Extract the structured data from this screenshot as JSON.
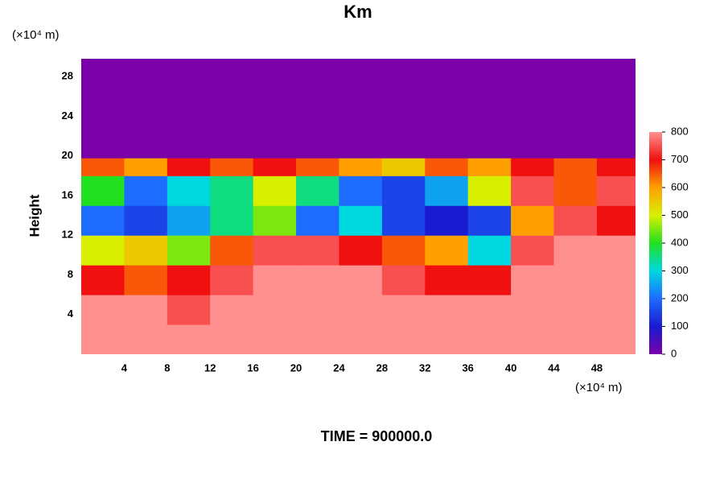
{
  "chart_data": {
    "type": "heatmap",
    "title": "Km",
    "ylabel": "Height",
    "x_unit": "(×10⁴ m)",
    "y_unit": "(×10⁴ m)",
    "annotation": "TIME = 900000.0",
    "x_edges": [
      0,
      4,
      8,
      12,
      16,
      20,
      24,
      28,
      32,
      36,
      40,
      44,
      48,
      51.6
    ],
    "y_edges": [
      0,
      3,
      6,
      9,
      12,
      15,
      18,
      19.8,
      29.8
    ],
    "z": [
      [
        800,
        800,
        800,
        800,
        800,
        800,
        800,
        800,
        800,
        800,
        800,
        800,
        800
      ],
      [
        800,
        800,
        750,
        800,
        800,
        800,
        800,
        800,
        800,
        800,
        800,
        800,
        800
      ],
      [
        700,
        650,
        700,
        750,
        800,
        800,
        800,
        750,
        700,
        700,
        800,
        800,
        800
      ],
      [
        500,
        550,
        450,
        650,
        750,
        750,
        700,
        650,
        600,
        300,
        750,
        800,
        800
      ],
      [
        200,
        150,
        250,
        350,
        450,
        200,
        300,
        150,
        100,
        150,
        600,
        750,
        700
      ],
      [
        400,
        200,
        300,
        350,
        500,
        350,
        200,
        150,
        250,
        500,
        750,
        650,
        750
      ],
      [
        650,
        600,
        700,
        650,
        700,
        650,
        600,
        550,
        650,
        600,
        700,
        650,
        700
      ],
      [
        0,
        0,
        0,
        0,
        0,
        0,
        0,
        0,
        0,
        0,
        0,
        0,
        0
      ]
    ],
    "xlim": [
      0,
      51.6
    ],
    "ylim": [
      0,
      29.8
    ],
    "xticks": [
      4,
      8,
      12,
      16,
      20,
      24,
      28,
      32,
      36,
      40,
      44,
      48
    ],
    "yticks": [
      4,
      8,
      12,
      16,
      20,
      24,
      28
    ],
    "zlim": [
      0,
      800
    ],
    "zticks": [
      0,
      100,
      200,
      300,
      400,
      500,
      600,
      700,
      800
    ],
    "colorscale": [
      [
        0,
        "#7a00a8"
      ],
      [
        100,
        "#1a1ad0"
      ],
      [
        200,
        "#1e6cff"
      ],
      [
        300,
        "#00d8e0"
      ],
      [
        400,
        "#20e020"
      ],
      [
        500,
        "#d8f000"
      ],
      [
        600,
        "#ffa000"
      ],
      [
        700,
        "#f01010"
      ],
      [
        800,
        "#ff9090"
      ]
    ]
  }
}
